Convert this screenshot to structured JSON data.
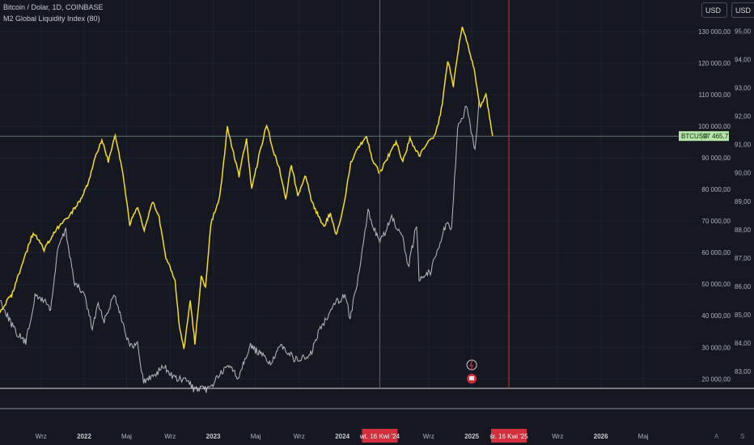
{
  "legend": {
    "symbol_line": "Bitcoin / Dolar, 1D, COINBASE",
    "indicator_line": "M2 Global Liquidity Index (80)"
  },
  "currency_buttons": [
    "USD",
    "USD"
  ],
  "price_tag": {
    "symbol": "BTCUSD",
    "value": "97 465,77"
  },
  "colors": {
    "background": "#151821",
    "btc": "#dfe4e6",
    "m2": "#f5dc2c",
    "marker": "#d12f3c",
    "grid": "#1f2330"
  },
  "markers": [
    {
      "label": "wt. 16 Kwi '24",
      "date": "2024-04-16"
    },
    {
      "label": "śr. 16 Kwi '25",
      "date": "2025-04-16"
    }
  ],
  "bottom_icons": [
    "A",
    "S"
  ],
  "chart_data": {
    "type": "line",
    "x_range": [
      "2021-05-08",
      "2026-10-01"
    ],
    "x_tick_labels": [
      {
        "label": "Wrz",
        "date": "2021-09-01",
        "bold": false
      },
      {
        "label": "2022",
        "date": "2022-01-01",
        "bold": true
      },
      {
        "label": "Maj",
        "date": "2022-05-01",
        "bold": false
      },
      {
        "label": "Wrz",
        "date": "2022-09-01",
        "bold": false
      },
      {
        "label": "2023",
        "date": "2023-01-01",
        "bold": true
      },
      {
        "label": "Maj",
        "date": "2023-05-01",
        "bold": false
      },
      {
        "label": "Wrz",
        "date": "2023-09-01",
        "bold": false
      },
      {
        "label": "2024",
        "date": "2024-01-01",
        "bold": true
      },
      {
        "label": "Wrz",
        "date": "2024-09-01",
        "bold": false
      },
      {
        "label": "2025",
        "date": "2025-01-01",
        "bold": true
      },
      {
        "label": "Wrz",
        "date": "2025-09-01",
        "bold": false
      },
      {
        "label": "2026",
        "date": "2026-01-01",
        "bold": true
      },
      {
        "label": "Maj",
        "date": "2026-05-01",
        "bold": false
      }
    ],
    "left_axis": {
      "ylim": [
        17000,
        140000
      ],
      "ticks": [
        20000,
        30000,
        40000,
        50000,
        60000,
        70000,
        80000,
        90000,
        100000,
        110000,
        120000,
        130000
      ],
      "tick_labels": [
        "20 000,00",
        "30 000,00",
        "40 000,00",
        "50 000,00",
        "60 000,00",
        "70 000,00",
        "80 000,00",
        "90 000,00",
        "100 000,00",
        "110 000,00",
        "120 000,00",
        "130 000,00"
      ]
    },
    "right_axis": {
      "ylim": [
        82.4,
        96.1
      ],
      "ticks": [
        83,
        84,
        85,
        86,
        87,
        88,
        89,
        90,
        91,
        92,
        93,
        94,
        95
      ],
      "tick_labels": [
        "83,00",
        "84,00",
        "85,00",
        "86,00",
        "87,00",
        "88,00",
        "89,00",
        "90,00",
        "91,00",
        "92,00",
        "93,00",
        "94,00",
        "95,00"
      ]
    },
    "series": [
      {
        "axis": "left",
        "points": [
          [
            "2021-05-08",
            45000
          ],
          [
            "2021-06-20",
            35000
          ],
          [
            "2021-07-20",
            31500
          ],
          [
            "2021-08-15",
            46000
          ],
          [
            "2021-09-10",
            45000
          ],
          [
            "2021-09-28",
            42000
          ],
          [
            "2021-10-20",
            62000
          ],
          [
            "2021-11-10",
            67000
          ],
          [
            "2021-12-05",
            50000
          ],
          [
            "2022-01-01",
            47000
          ],
          [
            "2022-01-24",
            36000
          ],
          [
            "2022-02-10",
            44000
          ],
          [
            "2022-02-24",
            38000
          ],
          [
            "2022-03-28",
            47000
          ],
          [
            "2022-04-15",
            40000
          ],
          [
            "2022-05-10",
            30000
          ],
          [
            "2022-06-01",
            31000
          ],
          [
            "2022-06-18",
            19000
          ],
          [
            "2022-07-15",
            21000
          ],
          [
            "2022-08-14",
            24000
          ],
          [
            "2022-09-15",
            20000
          ],
          [
            "2022-10-20",
            19500
          ],
          [
            "2022-11-09",
            16500
          ],
          [
            "2022-12-20",
            16800
          ],
          [
            "2023-01-15",
            21000
          ],
          [
            "2023-02-20",
            24500
          ],
          [
            "2023-03-10",
            20000
          ],
          [
            "2023-04-14",
            30500
          ],
          [
            "2023-06-15",
            25000
          ],
          [
            "2023-07-14",
            31000
          ],
          [
            "2023-08-20",
            26000
          ],
          [
            "2023-10-01",
            27000
          ],
          [
            "2023-10-25",
            34500
          ],
          [
            "2023-12-08",
            44000
          ],
          [
            "2024-01-11",
            46500
          ],
          [
            "2024-01-23",
            39000
          ],
          [
            "2024-02-15",
            52000
          ],
          [
            "2024-03-14",
            73000
          ],
          [
            "2024-04-16",
            63000
          ],
          [
            "2024-05-20",
            71000
          ],
          [
            "2024-06-20",
            64000
          ],
          [
            "2024-07-05",
            55000
          ],
          [
            "2024-07-29",
            69000
          ],
          [
            "2024-08-05",
            52000
          ],
          [
            "2024-09-06",
            54000
          ],
          [
            "2024-10-20",
            69000
          ],
          [
            "2024-11-05",
            68000
          ],
          [
            "2024-11-22",
            99000
          ],
          [
            "2024-12-17",
            106000
          ],
          [
            "2025-01-10",
            92000
          ],
          [
            "2025-01-21",
            108000
          ]
        ]
      },
      {
        "axis": "right",
        "points": [
          [
            "2021-05-08",
            85.1
          ],
          [
            "2021-06-10",
            85.7
          ],
          [
            "2021-07-10",
            86.8
          ],
          [
            "2021-08-10",
            87.9
          ],
          [
            "2021-09-10",
            87.3
          ],
          [
            "2021-10-15",
            88.0
          ],
          [
            "2021-11-20",
            88.5
          ],
          [
            "2021-12-20",
            89.0
          ],
          [
            "2022-01-10",
            89.6
          ],
          [
            "2022-02-01",
            90.5
          ],
          [
            "2022-02-20",
            91.2
          ],
          [
            "2022-03-10",
            90.4
          ],
          [
            "2022-03-30",
            91.3
          ],
          [
            "2022-04-20",
            90.0
          ],
          [
            "2022-05-10",
            88.2
          ],
          [
            "2022-05-30",
            88.8
          ],
          [
            "2022-06-20",
            88.0
          ],
          [
            "2022-07-15",
            89.0
          ],
          [
            "2022-08-01",
            88.4
          ],
          [
            "2022-08-20",
            87.0
          ],
          [
            "2022-09-15",
            86.2
          ],
          [
            "2022-09-28",
            84.5
          ],
          [
            "2022-10-10",
            83.8
          ],
          [
            "2022-10-28",
            85.5
          ],
          [
            "2022-11-10",
            84.0
          ],
          [
            "2022-11-28",
            86.3
          ],
          [
            "2022-12-10",
            86.0
          ],
          [
            "2022-12-25",
            88.2
          ],
          [
            "2023-01-20",
            89.2
          ],
          [
            "2023-02-10",
            91.6
          ],
          [
            "2023-02-25",
            90.8
          ],
          [
            "2023-03-15",
            89.9
          ],
          [
            "2023-04-05",
            91.2
          ],
          [
            "2023-04-20",
            89.4
          ],
          [
            "2023-05-10",
            90.6
          ],
          [
            "2023-06-01",
            91.7
          ],
          [
            "2023-06-20",
            90.8
          ],
          [
            "2023-07-10",
            90.0
          ],
          [
            "2023-07-25",
            89.1
          ],
          [
            "2023-08-10",
            90.3
          ],
          [
            "2023-08-28",
            89.2
          ],
          [
            "2023-09-20",
            89.9
          ],
          [
            "2023-10-05",
            89.0
          ],
          [
            "2023-10-25",
            88.5
          ],
          [
            "2023-11-10",
            88.1
          ],
          [
            "2023-11-28",
            88.6
          ],
          [
            "2023-12-15",
            87.8
          ],
          [
            "2024-01-05",
            88.8
          ],
          [
            "2024-01-25",
            90.4
          ],
          [
            "2024-02-15",
            90.9
          ],
          [
            "2024-03-10",
            91.3
          ],
          [
            "2024-03-25",
            90.5
          ],
          [
            "2024-04-16",
            90.0
          ],
          [
            "2024-05-10",
            90.6
          ],
          [
            "2024-06-01",
            91.1
          ],
          [
            "2024-06-20",
            90.4
          ],
          [
            "2024-07-10",
            91.2
          ],
          [
            "2024-08-05",
            90.6
          ],
          [
            "2024-08-25",
            91.0
          ],
          [
            "2024-09-20",
            91.3
          ],
          [
            "2024-10-10",
            92.4
          ],
          [
            "2024-10-25",
            94.0
          ],
          [
            "2024-11-10",
            93.1
          ],
          [
            "2024-11-22",
            94.2
          ],
          [
            "2024-12-05",
            95.2
          ],
          [
            "2024-12-20",
            94.6
          ],
          [
            "2025-01-10",
            93.5
          ],
          [
            "2025-01-25",
            92.3
          ],
          [
            "2025-02-10",
            92.8
          ],
          [
            "2025-02-20",
            92.0
          ],
          [
            "2025-03-01",
            91.3
          ]
        ]
      }
    ]
  }
}
